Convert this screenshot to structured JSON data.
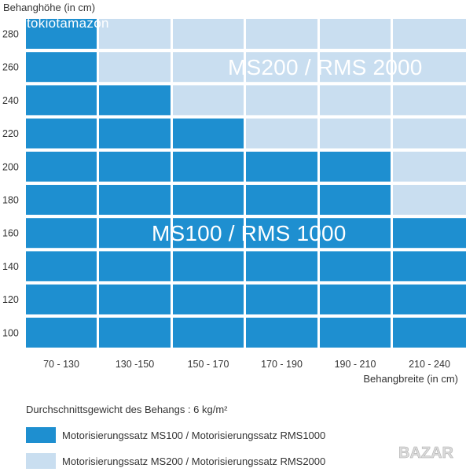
{
  "watermark": "tokiotamazon",
  "chart_data": {
    "type": "heatmap",
    "ylabel": "Behanghöhe (in cm)",
    "xlabel": "Behangbreite (in cm)",
    "y_categories": [
      "100",
      "120",
      "140",
      "160",
      "180",
      "200",
      "220",
      "240",
      "260",
      "280"
    ],
    "x_categories": [
      "70 - 130",
      "130 -150",
      "150 - 170",
      "170 - 190",
      "190 - 210",
      "210 - 240"
    ],
    "values": [
      [
        "MS100",
        "MS100",
        "MS100",
        "MS100",
        "MS100",
        "MS100"
      ],
      [
        "MS100",
        "MS100",
        "MS100",
        "MS100",
        "MS100",
        "MS100"
      ],
      [
        "MS100",
        "MS100",
        "MS100",
        "MS100",
        "MS100",
        "MS100"
      ],
      [
        "MS100",
        "MS100",
        "MS100",
        "MS100",
        "MS100",
        "MS100"
      ],
      [
        "MS100",
        "MS100",
        "MS100",
        "MS100",
        "MS100",
        "MS200"
      ],
      [
        "MS100",
        "MS100",
        "MS100",
        "MS100",
        "MS100",
        "MS200"
      ],
      [
        "MS100",
        "MS100",
        "MS100",
        "MS200",
        "MS200",
        "MS200"
      ],
      [
        "MS100",
        "MS100",
        "MS200",
        "MS200",
        "MS200",
        "MS200"
      ],
      [
        "MS100",
        "MS200",
        "MS200",
        "MS200",
        "MS200",
        "MS200"
      ],
      [
        "MS100",
        "MS200",
        "MS200",
        "MS200",
        "MS200",
        "MS200"
      ]
    ],
    "region_labels": {
      "MS100": "MS100 / RMS 1000",
      "MS200": "MS200 / RMS 2000"
    },
    "colors": {
      "MS100": "#1e8fd0",
      "MS200": "#c9def0"
    },
    "note": "Durchschnittsgewicht des Behangs : 6 kg/m²",
    "legend": [
      {
        "key": "MS100",
        "label": "Motorisierungssatz MS100 / Motorisierungssatz RMS1000"
      },
      {
        "key": "MS200",
        "label": "Motorisierungssatz MS200 / Motorisierungssatz RMS2000"
      }
    ]
  },
  "badge": {
    "text": "BAZAR"
  }
}
